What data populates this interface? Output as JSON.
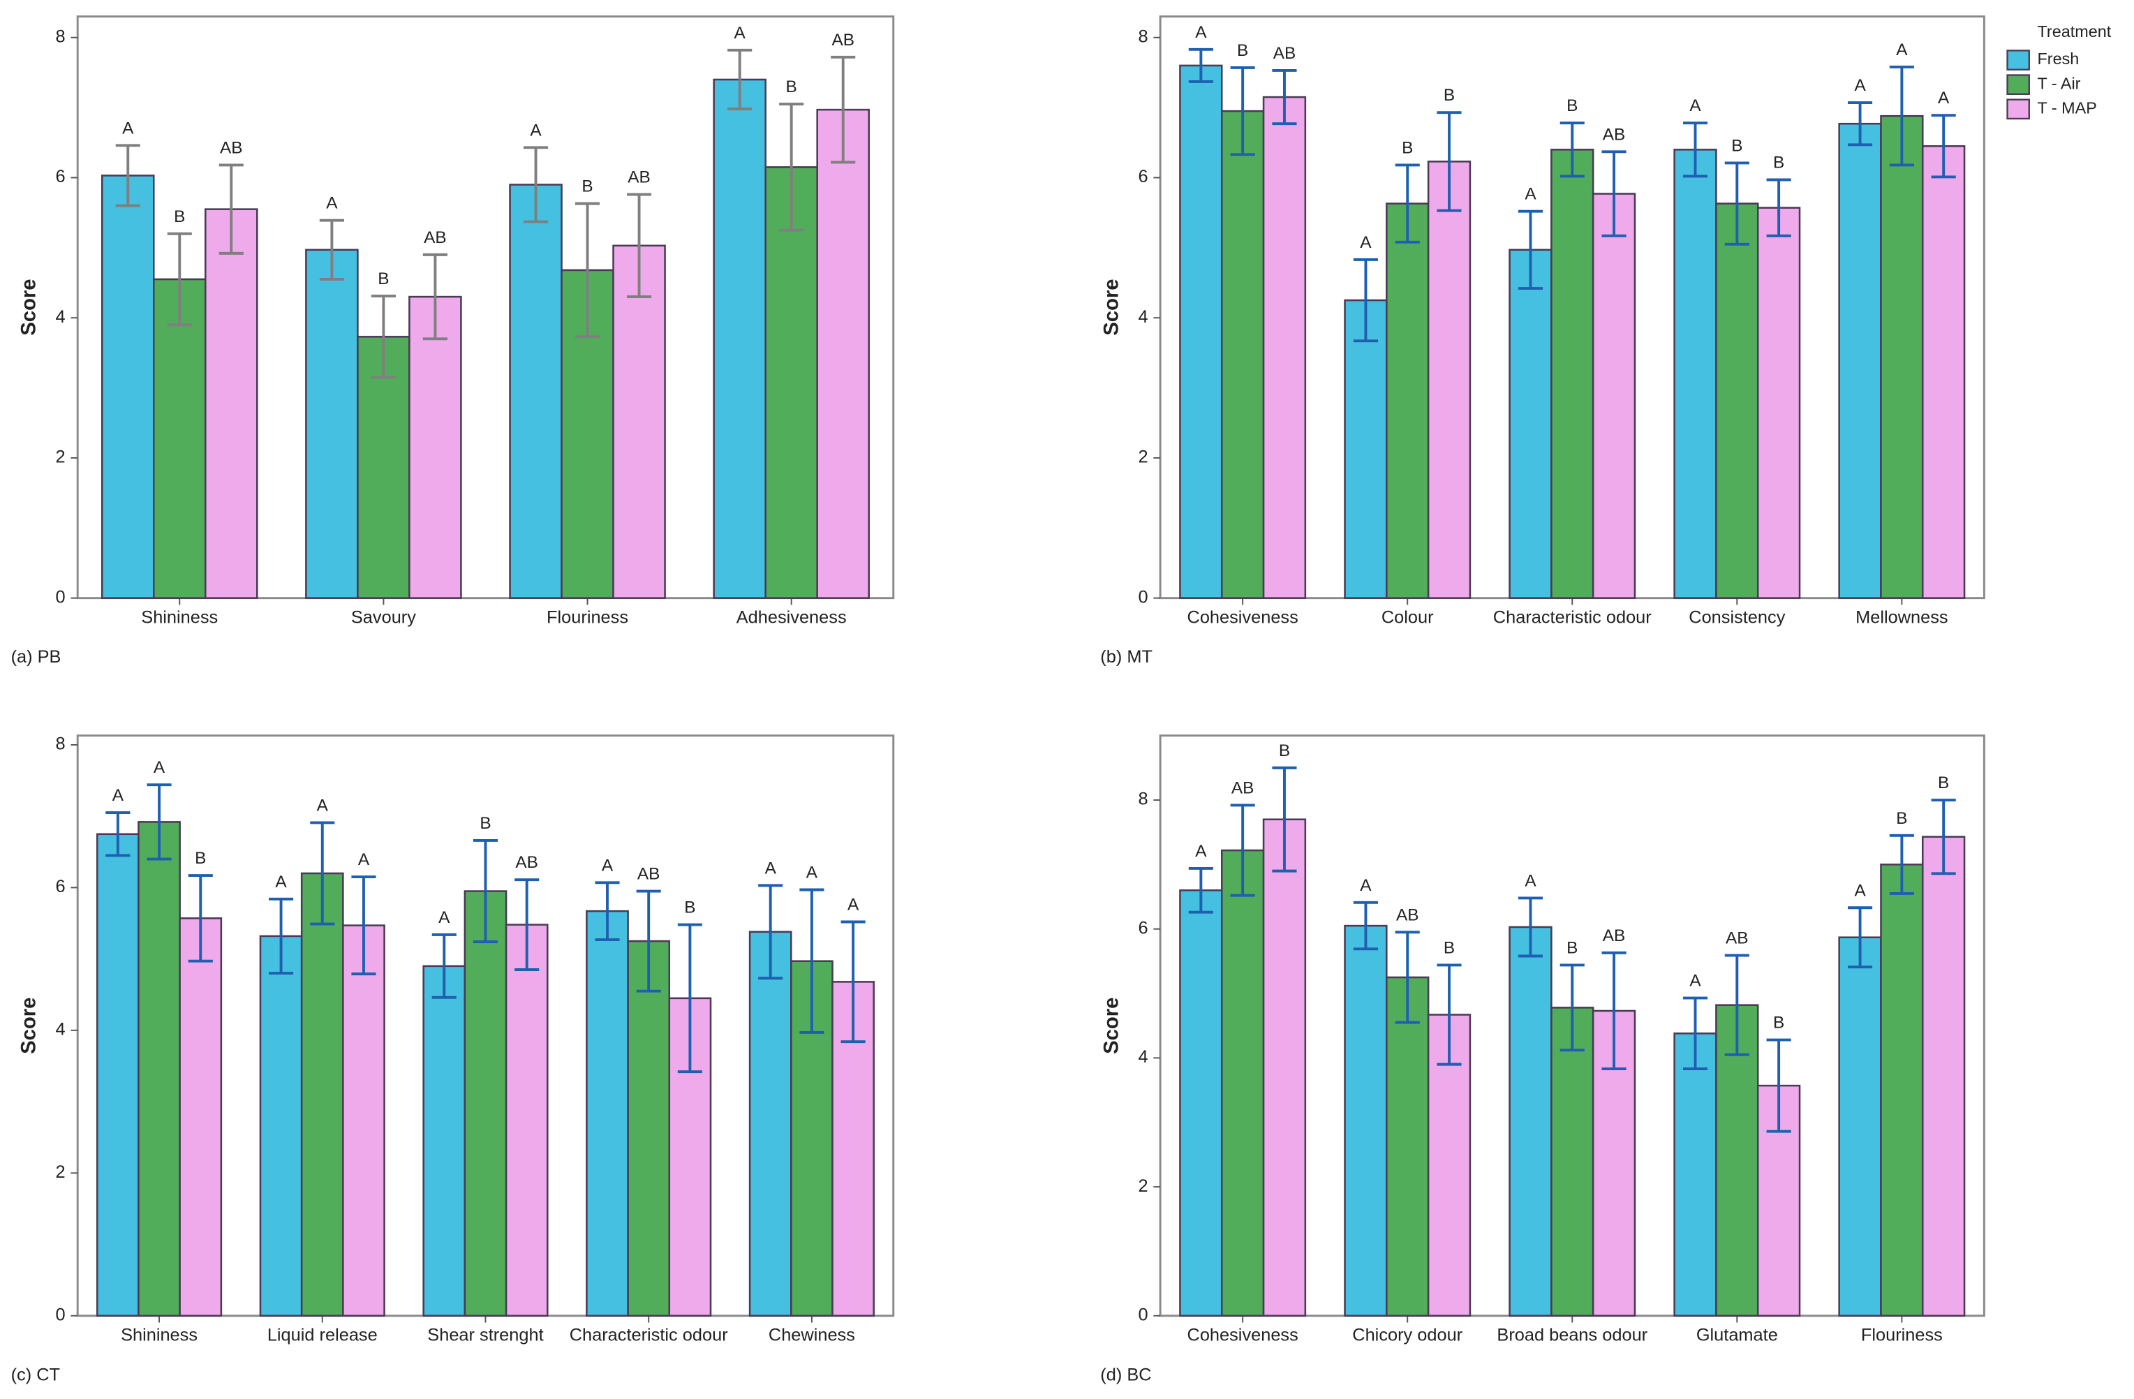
{
  "chart_data": [
    {
      "type": "bar",
      "panel_label": "(a) PB",
      "y_label": "Score",
      "categories": [
        "Shininess",
        "Savoury",
        "Flouriness",
        "Adhesiveness"
      ],
      "ylim": [
        0,
        8.3
      ],
      "yticks": [
        0,
        2,
        4,
        6,
        8
      ],
      "error_color": "#7f7f7f",
      "series": [
        {
          "name": "Fresh",
          "color": "#45c0e0",
          "values": [
            6.03,
            4.97,
            5.9,
            7.4
          ],
          "errors": [
            0.43,
            0.42,
            0.53,
            0.42
          ],
          "letters": [
            "A",
            "A",
            "A",
            "A"
          ]
        },
        {
          "name": "T - Air",
          "color": "#52ad5a",
          "values": [
            4.55,
            3.73,
            4.68,
            6.15
          ],
          "errors": [
            0.65,
            0.58,
            0.95,
            0.9
          ],
          "letters": [
            "B",
            "B",
            "B",
            "B"
          ]
        },
        {
          "name": "T - MAP",
          "color": "#eeaaea",
          "values": [
            5.55,
            4.3,
            5.03,
            6.97
          ],
          "errors": [
            0.63,
            0.6,
            0.73,
            0.75
          ],
          "letters": [
            "AB",
            "AB",
            "AB",
            "AB"
          ]
        }
      ]
    },
    {
      "type": "bar",
      "panel_label": "(b) MT",
      "y_label": "Score",
      "categories": [
        "Cohesiveness",
        "Colour",
        "Characteristic odour",
        "Consistency",
        "Mellowness"
      ],
      "ylim": [
        0,
        8.3
      ],
      "yticks": [
        0,
        2,
        4,
        6,
        8
      ],
      "error_color": "#1f5fb0",
      "legend": "upper right outside",
      "legend_title": "Treatment",
      "series": [
        {
          "name": "Fresh",
          "color": "#45c0e0",
          "values": [
            7.6,
            4.25,
            4.97,
            6.4,
            6.77
          ],
          "errors": [
            0.23,
            0.58,
            0.55,
            0.38,
            0.3
          ],
          "letters": [
            "A",
            "A",
            "A",
            "A",
            "A"
          ]
        },
        {
          "name": "T - Air",
          "color": "#52ad5a",
          "values": [
            6.95,
            5.63,
            6.4,
            5.63,
            6.88
          ],
          "errors": [
            0.62,
            0.55,
            0.38,
            0.58,
            0.7
          ],
          "letters": [
            "B",
            "B",
            "B",
            "B",
            "A"
          ]
        },
        {
          "name": "T - MAP",
          "color": "#eeaaea",
          "values": [
            7.15,
            6.23,
            5.77,
            5.57,
            6.45
          ],
          "errors": [
            0.38,
            0.7,
            0.6,
            0.4,
            0.44
          ],
          "letters": [
            "AB",
            "B",
            "AB",
            "B",
            "A"
          ]
        }
      ]
    },
    {
      "type": "bar",
      "panel_label": "(c) CT",
      "y_label": "Score",
      "categories": [
        "Shininess",
        "Liquid release",
        "Shear strenght",
        "Characteristic odour",
        "Chewiness"
      ],
      "ylim": [
        0,
        8.13
      ],
      "yticks": [
        0,
        2,
        4,
        6,
        8
      ],
      "error_color": "#1f5fb0",
      "series": [
        {
          "name": "Fresh",
          "color": "#45c0e0",
          "values": [
            6.75,
            5.32,
            4.9,
            5.67,
            5.38
          ],
          "errors": [
            0.3,
            0.52,
            0.44,
            0.4,
            0.65
          ],
          "letters": [
            "A",
            "A",
            "A",
            "A",
            "A"
          ]
        },
        {
          "name": "T - Air",
          "color": "#52ad5a",
          "values": [
            6.92,
            6.2,
            5.95,
            5.25,
            4.97
          ],
          "errors": [
            0.52,
            0.71,
            0.71,
            0.7,
            1.0
          ],
          "letters": [
            "A",
            "A",
            "B",
            "AB",
            "A"
          ]
        },
        {
          "name": "T - MAP",
          "color": "#eeaaea",
          "values": [
            5.57,
            5.47,
            5.48,
            4.45,
            4.68
          ],
          "errors": [
            0.6,
            0.68,
            0.63,
            1.03,
            0.84
          ],
          "letters": [
            "B",
            "A",
            "AB",
            "B",
            "A"
          ]
        }
      ]
    },
    {
      "type": "bar",
      "panel_label": "(d) BC",
      "y_label": "Score",
      "categories": [
        "Cohesiveness",
        "Chicory odour",
        "Broad beans odour",
        "Glutamate",
        "Flouriness"
      ],
      "ylim": [
        0,
        9
      ],
      "yticks": [
        0,
        2,
        4,
        6,
        8
      ],
      "error_color": "#1f5fb0",
      "series": [
        {
          "name": "Fresh",
          "color": "#45c0e0",
          "values": [
            6.6,
            6.05,
            6.03,
            4.38,
            5.87
          ],
          "errors": [
            0.34,
            0.36,
            0.45,
            0.55,
            0.46
          ],
          "letters": [
            "A",
            "A",
            "A",
            "A",
            "A"
          ]
        },
        {
          "name": "T - Air",
          "color": "#52ad5a",
          "values": [
            7.22,
            5.25,
            4.78,
            4.82,
            7.0
          ],
          "errors": [
            0.7,
            0.7,
            0.66,
            0.77,
            0.45
          ],
          "letters": [
            "AB",
            "AB",
            "B",
            "AB",
            "B"
          ]
        },
        {
          "name": "T - MAP",
          "color": "#eeaaea",
          "values": [
            7.7,
            4.67,
            4.73,
            3.57,
            7.43
          ],
          "errors": [
            0.8,
            0.77,
            0.9,
            0.71,
            0.57
          ],
          "letters": [
            "B",
            "B",
            "AB",
            "B",
            "B"
          ]
        }
      ]
    }
  ]
}
